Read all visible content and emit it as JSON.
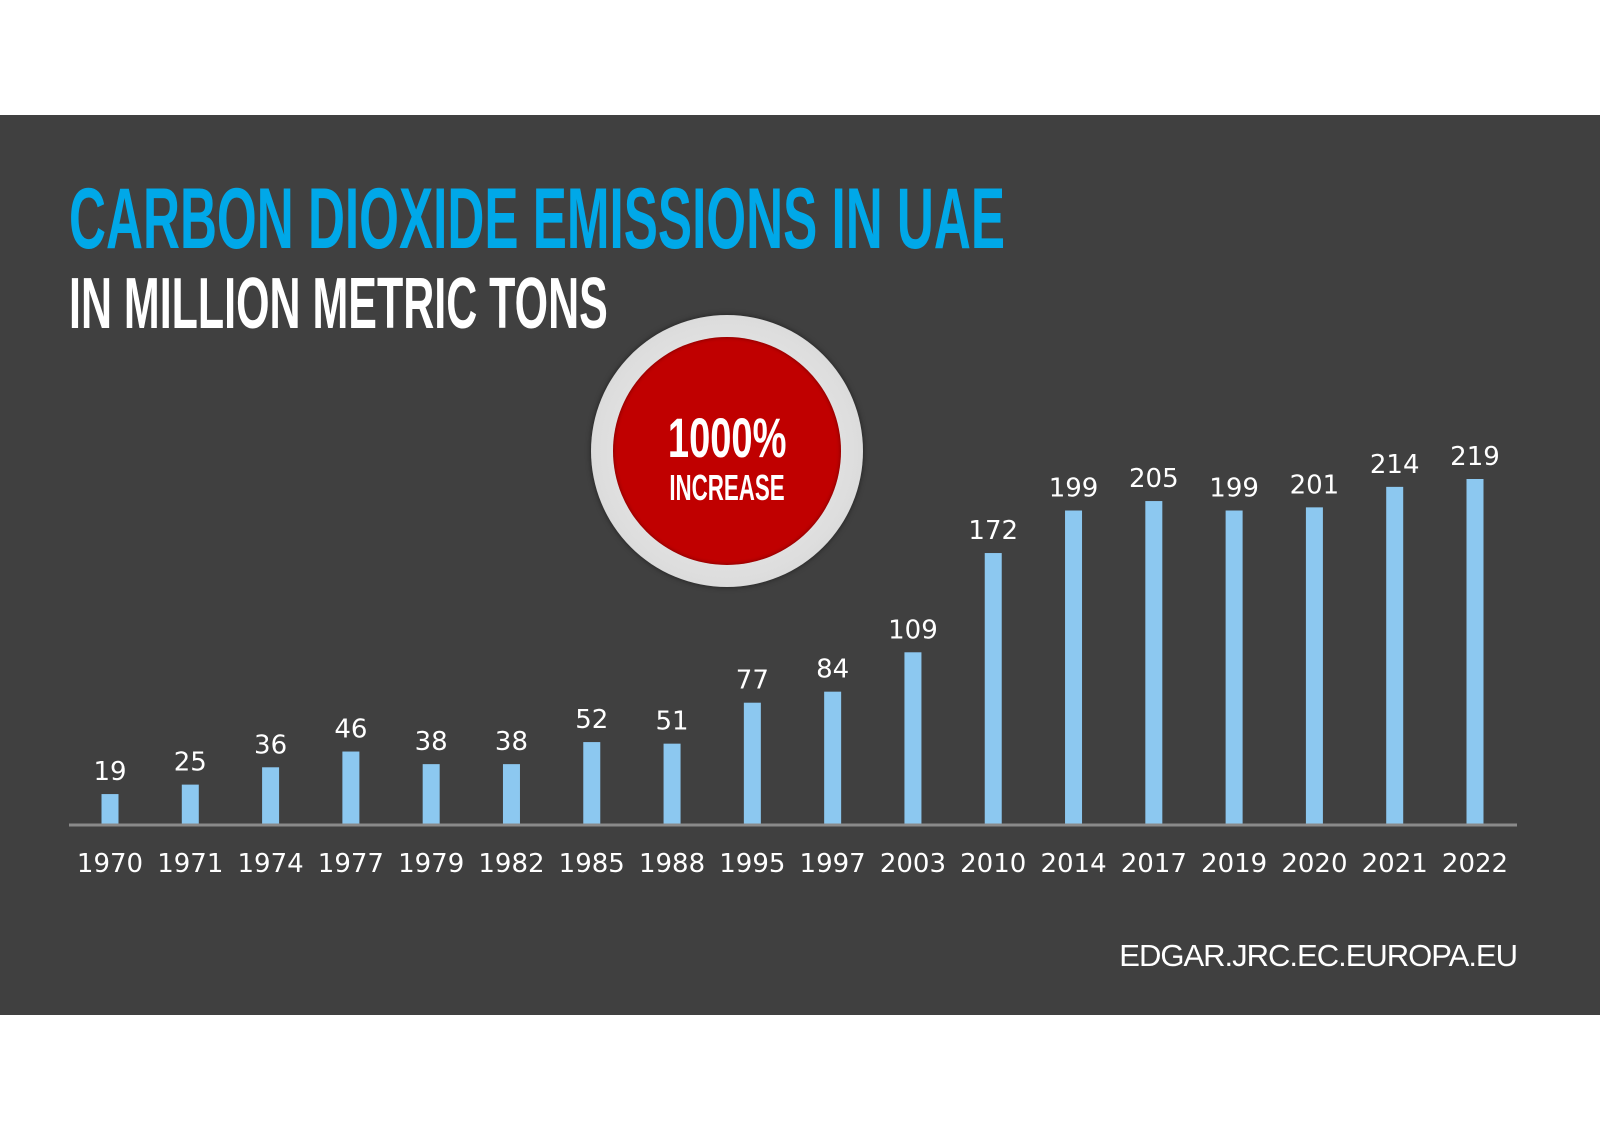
{
  "header": {
    "title": "CARBON DIOXIDE EMISSIONS IN UAE",
    "subtitle": "IN MILLION METRIC TONS"
  },
  "badge": {
    "value": "1000%",
    "label": "INCREASE",
    "color": "#c00000"
  },
  "source": "EDGAR.JRC.EC.EUROPA.EU",
  "colors": {
    "background": "#404040",
    "title": "#00a8e8",
    "bar": "#8cc8f0",
    "axis": "#8a8a8a",
    "text": "#ffffff"
  },
  "chart_data": {
    "type": "bar",
    "title": "CARBON DIOXIDE EMISSIONS IN UAE",
    "subtitle": "IN MILLION METRIC TONS",
    "categories": [
      "1970",
      "1971",
      "1974",
      "1977",
      "1979",
      "1982",
      "1985",
      "1988",
      "1995",
      "1997",
      "2003",
      "2010",
      "2014",
      "2017",
      "2019",
      "2020",
      "2021",
      "2022"
    ],
    "values": [
      19,
      25,
      36,
      46,
      38,
      38,
      52,
      51,
      77,
      84,
      109,
      172,
      199,
      205,
      199,
      201,
      214,
      219
    ],
    "data_labels": true,
    "grid": false,
    "ylim": [
      0,
      219
    ]
  }
}
